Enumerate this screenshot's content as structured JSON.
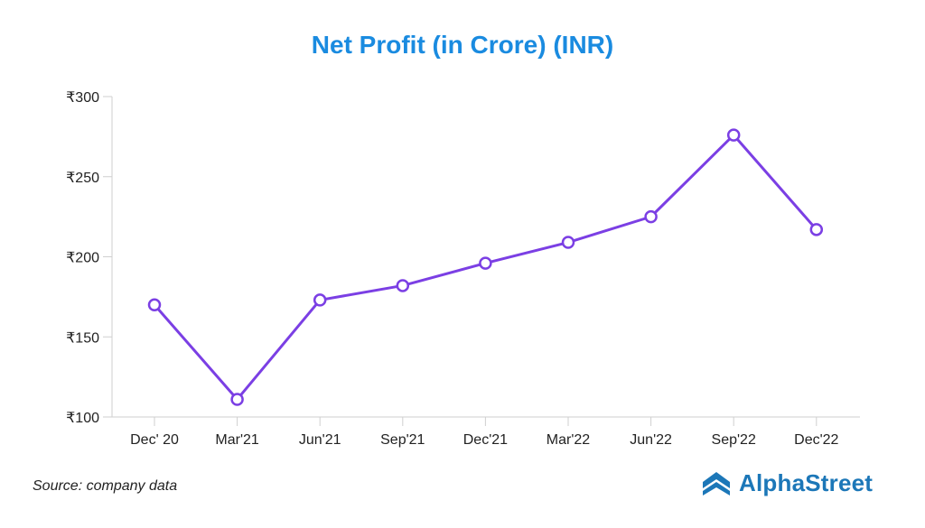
{
  "chart_data": {
    "type": "line",
    "title": "Net Profit (in Crore) (INR)",
    "xlabel": "",
    "ylabel": "",
    "categories": [
      "Dec' 20",
      "Mar'21",
      "Jun'21",
      "Sep'21",
      "Dec'21",
      "Mar'22",
      "Jun'22",
      "Sep'22",
      "Dec'22"
    ],
    "series": [
      {
        "values": [
          170,
          111,
          173,
          182,
          196,
          209,
          225,
          276,
          217
        ]
      }
    ],
    "ylim": [
      100,
      300
    ],
    "yticks": [
      100,
      150,
      200,
      250,
      300
    ],
    "ytick_labels": [
      "₹100",
      "₹150",
      "₹200",
      "₹250",
      "₹300"
    ],
    "grid": false,
    "legend": "none",
    "colors": {
      "line": "#7b3fe4",
      "marker_fill": "#ffffff",
      "title": "#1a8be0",
      "axis": "#cfcfcf",
      "text": "#222222"
    }
  },
  "footer": {
    "source": "Source: company data",
    "brand": "AlphaStreet",
    "brand_icon": "alphastreet-logo-icon",
    "brand_color": "#1c77b8"
  }
}
